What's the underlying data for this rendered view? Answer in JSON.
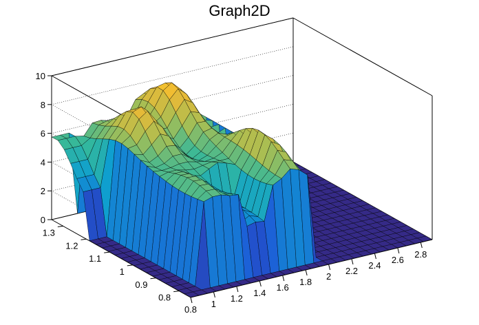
{
  "chart_data": {
    "type": "surface",
    "title": "Graph2D",
    "xlabel": "",
    "ylabel": "",
    "zlabel": "",
    "xlim": [
      0.8,
      2.9
    ],
    "ylim": [
      0.75,
      1.35
    ],
    "zlim": [
      0,
      10
    ],
    "x_ticks": [
      "0.8",
      "1",
      "1.2",
      "1.4",
      "1.6",
      "1.8",
      "2",
      "2.2",
      "2.4",
      "2.6",
      "2.8"
    ],
    "y_ticks": [
      "0.8",
      "0.9",
      "1",
      "1.1",
      "1.2",
      "1.3"
    ],
    "z_ticks": [
      "0",
      "2",
      "4",
      "6",
      "8",
      "10"
    ],
    "grid": true,
    "colormap": "parula",
    "annotations": [
      {
        "shape": "plateau",
        "x_range": [
          1.0,
          2.0
        ],
        "y_range": [
          0.8,
          1.3
        ],
        "value_range": [
          6,
          9
        ]
      },
      {
        "shape": "peak",
        "x": 1.6,
        "y": 1.25,
        "value": 9
      },
      {
        "shape": "peak",
        "x": 1.2,
        "y": 1.2,
        "value": 8.5
      },
      {
        "shape": "base",
        "value": 0
      }
    ]
  }
}
